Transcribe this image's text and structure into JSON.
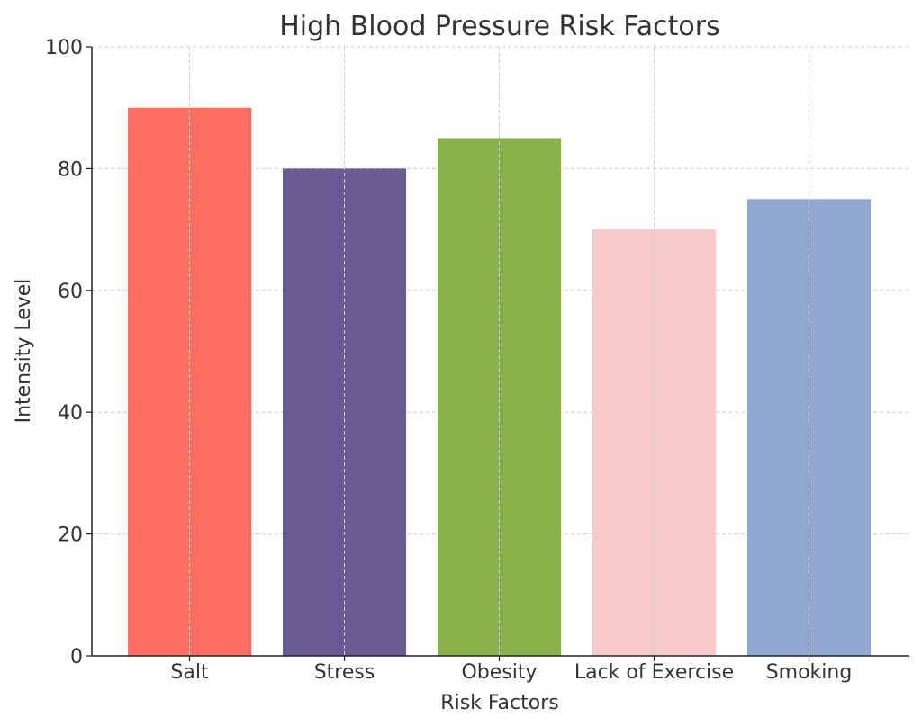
{
  "chart_data": {
    "type": "bar",
    "title": "High Blood Pressure Risk Factors",
    "xlabel": "Risk Factors",
    "ylabel": "Intensity Level",
    "categories": [
      "Salt",
      "Stress",
      "Obesity",
      "Lack of Exercise",
      "Smoking"
    ],
    "values": [
      90,
      80,
      85,
      70,
      75
    ],
    "colors": [
      "#ff6f61",
      "#6b5b95",
      "#88b04b",
      "#f7cac9",
      "#92a8d1"
    ],
    "ylim": [
      0,
      100
    ],
    "yticks": [
      0,
      20,
      40,
      60,
      80,
      100
    ],
    "grid": true
  }
}
